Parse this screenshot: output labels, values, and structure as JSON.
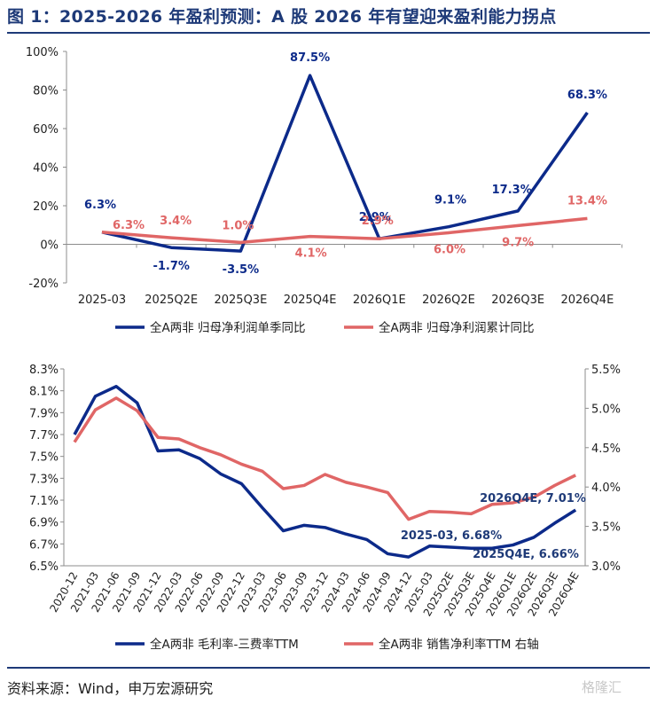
{
  "title": "图 1：2025-2026 年盈利预测：A 股 2026 年有望迎来盈利能力拐点",
  "source": "资料来源：Wind，申万宏源研究",
  "watermark": "格隆汇",
  "colors": {
    "navy": "#0c2a8a",
    "red": "#e06666",
    "title": "#1e3a78"
  },
  "chart_data": [
    {
      "type": "line",
      "categories": [
        "2025-03",
        "2025Q2E",
        "2025Q3E",
        "2025Q4E",
        "2026Q1E",
        "2026Q2E",
        "2026Q3E",
        "2026Q4E"
      ],
      "ylim": [
        -20,
        100
      ],
      "yticks": [
        "-20%",
        "0%",
        "20%",
        "40%",
        "60%",
        "80%",
        "100%"
      ],
      "yunit": "%",
      "grid": false,
      "legend_position": "bottom",
      "series": [
        {
          "name": "全A两非 归母净利润单季同比",
          "color": "#0c2a8a",
          "values": [
            6.3,
            -1.7,
            -3.5,
            87.5,
            2.9,
            9.1,
            17.3,
            68.3
          ],
          "labels": [
            "6.3%",
            "-1.7%",
            "-3.5%",
            "87.5%",
            "2.9%",
            "9.1%",
            "17.3%",
            "68.3%"
          ]
        },
        {
          "name": "全A两非 归母净利润累计同比",
          "color": "#e06666",
          "values": [
            6.3,
            3.4,
            1.0,
            4.1,
            2.9,
            6.0,
            9.7,
            13.4
          ],
          "labels": [
            "6.3%",
            "3.4%",
            "1.0%",
            "4.1%",
            "2.9%",
            "6.0%",
            "9.7%",
            "13.4%"
          ]
        }
      ]
    },
    {
      "type": "line",
      "categories": [
        "2020-12",
        "2021-03",
        "2021-06",
        "2021-09",
        "2021-12",
        "2022-03",
        "2022-06",
        "2022-09",
        "2022-12",
        "2023-03",
        "2023-06",
        "2023-09",
        "2023-12",
        "2024-03",
        "2024-06",
        "2024-09",
        "2024-12",
        "2025-03",
        "2025Q2E",
        "2025Q3E",
        "2025Q4E",
        "2026Q1E",
        "2026Q2E",
        "2026Q3E",
        "2026Q4E"
      ],
      "ylim": [
        6.5,
        8.3
      ],
      "yticks": [
        "6.5%",
        "6.7%",
        "6.9%",
        "7.1%",
        "7.3%",
        "7.5%",
        "7.7%",
        "7.9%",
        "8.1%",
        "8.3%"
      ],
      "y2lim": [
        3.0,
        5.5
      ],
      "y2ticks": [
        "3.0%",
        "3.5%",
        "4.0%",
        "4.5%",
        "5.0%",
        "5.5%"
      ],
      "grid": false,
      "legend_position": "bottom",
      "series": [
        {
          "name": "全A两非 毛利率-三费率TTM",
          "color": "#0c2a8a",
          "axis": "left",
          "values": [
            7.7,
            8.05,
            8.14,
            7.99,
            7.55,
            7.56,
            7.48,
            7.34,
            7.25,
            7.03,
            6.82,
            6.87,
            6.85,
            6.79,
            6.74,
            6.61,
            6.58,
            6.68,
            6.67,
            6.66,
            6.66,
            6.69,
            6.76,
            6.89,
            7.01
          ]
        },
        {
          "name": "全A两非 销售净利率TTM 右轴",
          "color": "#e06666",
          "axis": "right",
          "values": [
            4.57,
            4.98,
            5.13,
            4.97,
            4.63,
            4.61,
            4.5,
            4.41,
            4.29,
            4.2,
            3.98,
            4.02,
            4.16,
            4.06,
            4.0,
            3.93,
            3.59,
            3.69,
            3.68,
            3.66,
            3.78,
            3.8,
            3.87,
            4.02,
            4.15
          ]
        }
      ],
      "annotations": [
        {
          "text": "2025-03, 6.68%",
          "series": 0,
          "index": 17
        },
        {
          "text": "2025Q4E, 6.66%",
          "series": 0,
          "index": 20
        },
        {
          "text": "2026Q4E, 7.01%",
          "series": 0,
          "index": 24
        }
      ]
    }
  ]
}
